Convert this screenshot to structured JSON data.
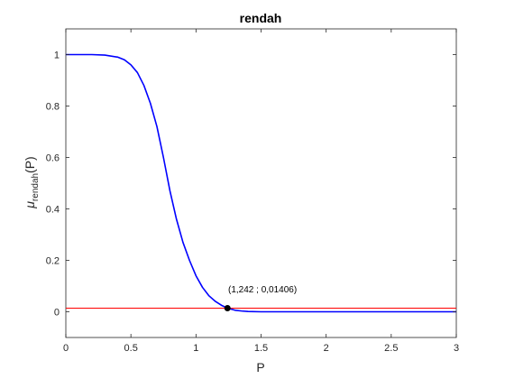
{
  "chart_data": {
    "type": "line",
    "title": "rendah",
    "xlabel": "P",
    "ylabel_main": "μ",
    "ylabel_sub": "rendah",
    "ylabel_tail": "(P)",
    "xlim": [
      0,
      3
    ],
    "ylim": [
      -0.1,
      1.1
    ],
    "xticks": [
      0,
      0.5,
      1,
      1.5,
      2,
      2.5,
      3
    ],
    "xtick_labels": [
      "0",
      "0.5",
      "1",
      "1.5",
      "2",
      "2.5",
      "3"
    ],
    "yticks": [
      0,
      0.2,
      0.4,
      0.6,
      0.8,
      1
    ],
    "ytick_labels": [
      "0",
      "0.2",
      "0.4",
      "0.6",
      "0.8",
      "1"
    ],
    "grid": false,
    "series": [
      {
        "color": "#0000ff",
        "x": [
          0,
          0.1,
          0.2,
          0.3,
          0.4,
          0.45,
          0.5,
          0.55,
          0.6,
          0.65,
          0.7,
          0.75,
          0.8,
          0.85,
          0.9,
          0.95,
          1.0,
          1.05,
          1.1,
          1.15,
          1.2,
          1.242,
          1.3,
          1.35,
          1.4,
          1.5,
          1.75,
          2.0,
          2.5,
          3.0
        ],
        "y": [
          1,
          1,
          1,
          0.998,
          0.99,
          0.98,
          0.96,
          0.93,
          0.88,
          0.81,
          0.72,
          0.6,
          0.47,
          0.36,
          0.27,
          0.2,
          0.14,
          0.095,
          0.062,
          0.04,
          0.024,
          0.01406,
          0.006,
          0.003,
          0.001,
          0.0,
          0.0,
          0.0,
          0.0,
          0.0
        ]
      }
    ],
    "reference_line": {
      "color": "#ff0000",
      "y": 0.01406,
      "x": [
        0,
        3
      ]
    },
    "marker": {
      "x": 1.242,
      "y": 0.01406,
      "label": "(1,242 ; 0,01406)",
      "color": "#000000"
    }
  }
}
